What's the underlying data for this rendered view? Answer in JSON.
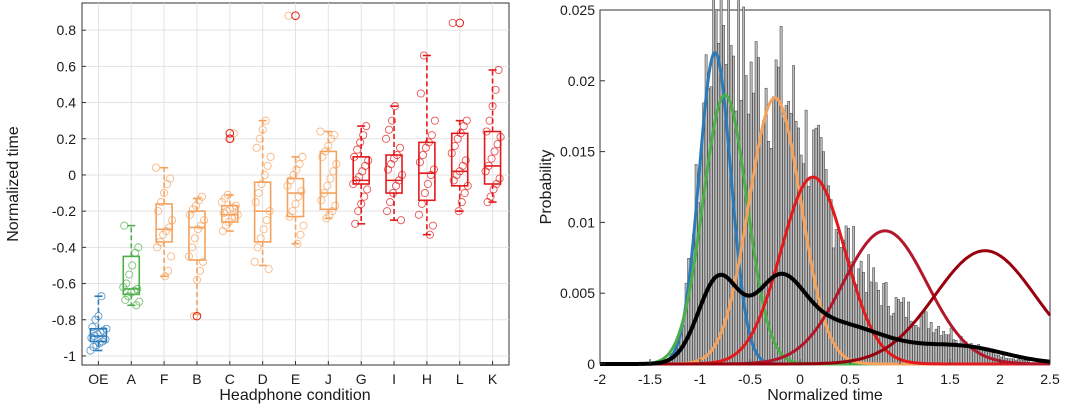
{
  "chart_data": [
    {
      "type": "box",
      "xlabel": "Headphone condition",
      "ylabel": "Normalized time",
      "ylim": [
        -1.05,
        0.95
      ],
      "yticks": [
        -1,
        -0.8,
        -0.6,
        -0.4,
        -0.2,
        0,
        0.2,
        0.4,
        0.6,
        0.8
      ],
      "ytick_labels": [
        "-1",
        "-0.8",
        "-0.6",
        "-0.4",
        "-0.2",
        "0",
        "0.2",
        "0.4",
        "0.6",
        "0.8"
      ],
      "grid": true,
      "categories": [
        "OE",
        "A",
        "F",
        "B",
        "C",
        "D",
        "E",
        "J",
        "G",
        "I",
        "H",
        "L",
        "K"
      ],
      "colors": [
        "#2b7bba",
        "#4daf4a",
        "#f5a25d",
        "#f5a25d",
        "#f5a25d",
        "#f5a25d",
        "#f5a25d",
        "#f5a25d",
        "#e31a1c",
        "#e31a1c",
        "#e31a1c",
        "#e31a1c",
        "#e31a1c"
      ],
      "boxes": [
        {
          "q1": -0.92,
          "median": -0.89,
          "q3": -0.85,
          "wlow": -0.97,
          "whigh": -0.67,
          "outliers": [],
          "points": [
            -0.97,
            -0.95,
            -0.94,
            -0.93,
            -0.92,
            -0.91,
            -0.9,
            -0.89,
            -0.88,
            -0.87,
            -0.86,
            -0.85,
            -0.84,
            -0.8,
            -0.78,
            -0.67
          ]
        },
        {
          "q1": -0.66,
          "median": -0.63,
          "q3": -0.45,
          "wlow": -0.72,
          "whigh": -0.28,
          "outliers": [],
          "points": [
            -0.72,
            -0.7,
            -0.69,
            -0.67,
            -0.65,
            -0.64,
            -0.63,
            -0.62,
            -0.6,
            -0.55,
            -0.5,
            -0.43,
            -0.4,
            -0.28
          ]
        },
        {
          "q1": -0.37,
          "median": -0.3,
          "q3": -0.16,
          "wlow": -0.56,
          "whigh": 0.04,
          "outliers": [],
          "points": [
            -0.56,
            -0.53,
            -0.45,
            -0.4,
            -0.37,
            -0.33,
            -0.31,
            -0.29,
            -0.25,
            -0.2,
            -0.15,
            -0.1,
            -0.05,
            -0.02,
            0.04
          ]
        },
        {
          "q1": -0.47,
          "median": -0.29,
          "q3": -0.2,
          "wlow": -0.77,
          "whigh": -0.13,
          "outliers": [
            -0.78
          ],
          "points": [
            -0.78,
            -0.58,
            -0.53,
            -0.48,
            -0.45,
            -0.4,
            -0.35,
            -0.3,
            -0.28,
            -0.25,
            -0.22,
            -0.19,
            -0.17,
            -0.14,
            -0.12
          ]
        },
        {
          "q1": -0.26,
          "median": -0.22,
          "q3": -0.17,
          "wlow": -0.31,
          "whigh": -0.11,
          "outliers": [
            0.2,
            0.23
          ],
          "points": [
            -0.31,
            -0.28,
            -0.26,
            -0.24,
            -0.23,
            -0.22,
            -0.21,
            -0.2,
            -0.19,
            -0.18,
            -0.17,
            -0.15,
            -0.13,
            -0.11,
            0.2,
            0.23
          ]
        },
        {
          "q1": -0.37,
          "median": -0.2,
          "q3": -0.04,
          "wlow": -0.5,
          "whigh": 0.3,
          "outliers": [],
          "points": [
            -0.52,
            -0.48,
            -0.4,
            -0.35,
            -0.3,
            -0.25,
            -0.2,
            -0.15,
            -0.1,
            -0.05,
            0.0,
            0.05,
            0.1,
            0.15,
            0.2,
            0.25,
            0.3
          ]
        },
        {
          "q1": -0.23,
          "median": -0.1,
          "q3": -0.02,
          "wlow": -0.38,
          "whigh": 0.1,
          "outliers": [
            0.88
          ],
          "points": [
            -0.38,
            -0.33,
            -0.28,
            -0.23,
            -0.2,
            -0.16,
            -0.12,
            -0.09,
            -0.06,
            -0.03,
            0.0,
            0.03,
            0.06,
            0.1,
            0.88
          ]
        },
        {
          "q1": -0.19,
          "median": -0.1,
          "q3": 0.13,
          "wlow": -0.24,
          "whigh": 0.24,
          "outliers": [],
          "points": [
            -0.24,
            -0.22,
            -0.2,
            -0.17,
            -0.14,
            -0.1,
            -0.06,
            -0.02,
            0.02,
            0.06,
            0.1,
            0.13,
            0.16,
            0.2,
            0.22,
            0.24
          ]
        },
        {
          "q1": -0.05,
          "median": -0.03,
          "q3": 0.1,
          "wlow": -0.27,
          "whigh": 0.27,
          "outliers": [],
          "points": [
            -0.27,
            -0.2,
            -0.16,
            -0.12,
            -0.08,
            -0.05,
            -0.03,
            -0.01,
            0.02,
            0.05,
            0.08,
            0.1,
            0.14,
            0.18,
            0.22,
            0.27
          ]
        },
        {
          "q1": -0.1,
          "median": -0.03,
          "q3": 0.11,
          "wlow": -0.25,
          "whigh": 0.38,
          "outliers": [],
          "points": [
            -0.25,
            -0.2,
            -0.15,
            -0.1,
            -0.06,
            -0.03,
            0.0,
            0.03,
            0.06,
            0.09,
            0.11,
            0.15,
            0.2,
            0.25,
            0.3,
            0.38
          ]
        },
        {
          "q1": -0.14,
          "median": 0.01,
          "q3": 0.18,
          "wlow": -0.33,
          "whigh": 0.66,
          "outliers": [],
          "points": [
            -0.33,
            -0.28,
            -0.22,
            -0.16,
            -0.1,
            -0.05,
            0.0,
            0.03,
            0.07,
            0.11,
            0.15,
            0.18,
            0.22,
            0.3,
            0.45,
            0.66
          ]
        },
        {
          "q1": -0.06,
          "median": 0.02,
          "q3": 0.23,
          "wlow": -0.2,
          "whigh": 0.3,
          "outliers": [
            0.84
          ],
          "points": [
            -0.2,
            -0.15,
            -0.1,
            -0.06,
            -0.03,
            0.0,
            0.02,
            0.05,
            0.08,
            0.12,
            0.16,
            0.2,
            0.23,
            0.27,
            0.3,
            0.84
          ]
        },
        {
          "q1": -0.05,
          "median": 0.05,
          "q3": 0.24,
          "wlow": -0.15,
          "whigh": 0.58,
          "outliers": [],
          "points": [
            -0.15,
            -0.12,
            -0.08,
            -0.05,
            -0.02,
            0.02,
            0.05,
            0.09,
            0.13,
            0.17,
            0.21,
            0.24,
            0.3,
            0.38,
            0.47,
            0.58
          ]
        }
      ]
    },
    {
      "type": "histogram",
      "xlabel": "Normalized time",
      "ylabel": "Probability",
      "xlim": [
        -2,
        2.5
      ],
      "ylim": [
        0,
        0.025
      ],
      "xticks": [
        -2,
        -1.5,
        -1,
        -0.5,
        0,
        0.5,
        1,
        1.5,
        2,
        2.5
      ],
      "xtick_labels": [
        "-2",
        "-1.5",
        "-1",
        "-0.5",
        "0",
        "0.5",
        "1",
        "1.5",
        "2",
        "2.5"
      ],
      "yticks": [
        0,
        0.005,
        0.01,
        0.015,
        0.02,
        0.025
      ],
      "ytick_labels": [
        "0",
        "0.005",
        "0.01",
        "0.015",
        "0.02",
        "0.025"
      ],
      "grid": false,
      "bin_width": 0.025,
      "bin_range": [
        -1.7,
        2.3
      ],
      "histogram_envelope": [
        {
          "weight": 0.9,
          "mu": -0.85,
          "sigma": 0.16,
          "peak": 0.02
        },
        {
          "weight": 0.8,
          "mu": -0.6,
          "sigma": 0.25,
          "peak": 0.014
        },
        {
          "weight": 0.9,
          "mu": -0.2,
          "sigma": 0.3,
          "peak": 0.015
        },
        {
          "weight": 0.7,
          "mu": 0.25,
          "sigma": 0.35,
          "peak": 0.01
        },
        {
          "weight": 0.7,
          "mu": 1.0,
          "sigma": 0.55,
          "peak": 0.005
        }
      ],
      "curves": [
        {
          "name": "component-blue",
          "color": "#2b7bba",
          "mu": -0.85,
          "sigma": 0.16,
          "peak": 0.022
        },
        {
          "name": "component-green",
          "color": "#4daf4a",
          "mu": -0.75,
          "sigma": 0.22,
          "peak": 0.019
        },
        {
          "name": "component-orange",
          "color": "#f5a25d",
          "mu": -0.25,
          "sigma": 0.26,
          "peak": 0.0188
        },
        {
          "name": "component-red",
          "color": "#e31a1c",
          "mu": 0.13,
          "sigma": 0.32,
          "peak": 0.0132
        },
        {
          "name": "component-darkred",
          "color": "#b2182b",
          "mu": 0.85,
          "sigma": 0.42,
          "peak": 0.0094
        },
        {
          "name": "component-maroon",
          "color": "#99000d",
          "mu": 1.85,
          "sigma": 0.5,
          "peak": 0.008
        }
      ],
      "mixture_curve": {
        "name": "mixture-black",
        "color": "#000000",
        "components": [
          {
            "mu": -0.82,
            "sigma": 0.2,
            "peak": 0.0058
          },
          {
            "mu": -0.22,
            "sigma": 0.25,
            "peak": 0.0048
          },
          {
            "mu": 0.35,
            "sigma": 0.5,
            "peak": 0.0028
          },
          {
            "mu": 1.6,
            "sigma": 0.45,
            "peak": 0.0012
          }
        ]
      }
    }
  ]
}
